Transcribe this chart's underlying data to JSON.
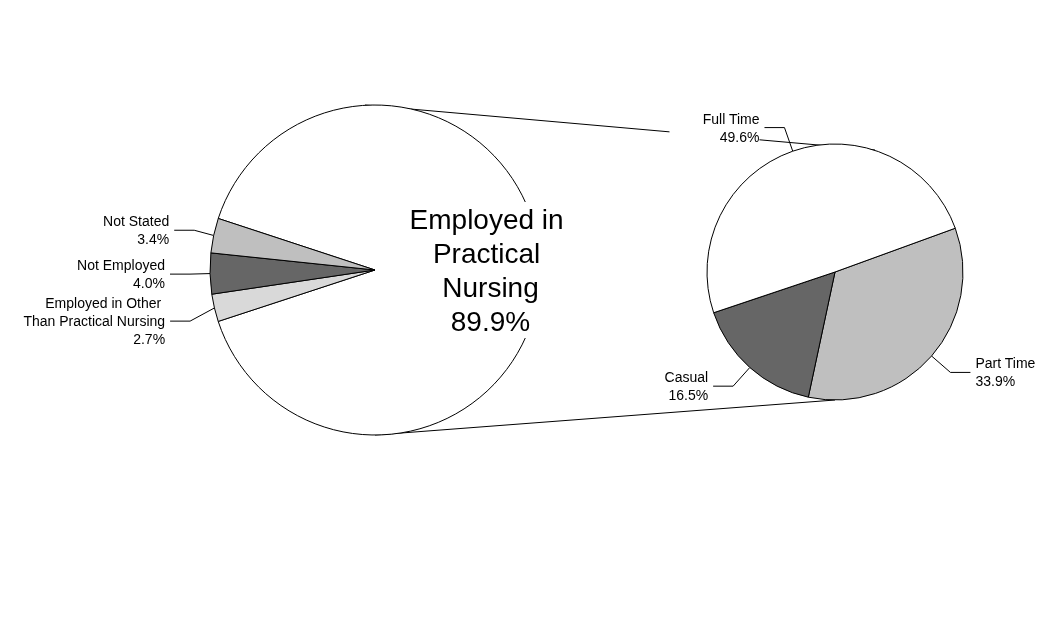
{
  "chart_data": [
    {
      "type": "pie",
      "categories": [
        "Employed in Practical Nursing",
        "Employed in Other Than Practical Nursing",
        "Not Employed",
        "Not Stated"
      ],
      "values": [
        89.9,
        2.7,
        4.0,
        3.4
      ],
      "value_labels": [
        "89.9%",
        "2.7%",
        "4.0%",
        "3.4%"
      ],
      "colors": [
        "#ffffff",
        "#d9d9d9",
        "#666666",
        "#bfbfbf"
      ],
      "legend": false
    },
    {
      "type": "pie",
      "categories": [
        "Part Time",
        "Casual",
        "Full Time"
      ],
      "values": [
        33.9,
        16.5,
        49.6
      ],
      "value_labels": [
        "33.9%",
        "16.5%",
        "49.6%"
      ],
      "colors": [
        "#bfbfbf",
        "#666666",
        "#ffffff"
      ],
      "legend": false
    }
  ]
}
